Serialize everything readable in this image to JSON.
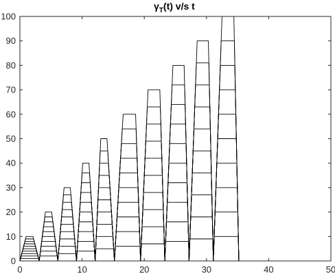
{
  "chart_data": {
    "type": "line",
    "title": {
      "symbol": "γ",
      "subscript": "T",
      "rest": "(t) v/s t"
    },
    "xlabel": "",
    "ylabel": "",
    "xlim": [
      0,
      50
    ],
    "ylim": [
      0,
      100
    ],
    "xticks": [
      0,
      10,
      20,
      30,
      40,
      50
    ],
    "yticks": [
      0,
      10,
      20,
      30,
      40,
      50,
      60,
      70,
      80,
      90,
      100
    ],
    "grid": false,
    "line_color": "#000000",
    "stripes_per_trapezoid": 10,
    "trapezoids": [
      {
        "t_start": 0.0,
        "t_rise_end": 1.0,
        "t_fall_start": 2.1,
        "t_end": 3.1,
        "peak": 10
      },
      {
        "t_start": 3.1,
        "t_rise_end": 4.1,
        "t_fall_start": 5.1,
        "t_end": 6.1,
        "peak": 20
      },
      {
        "t_start": 6.1,
        "t_rise_end": 7.1,
        "t_fall_start": 8.1,
        "t_end": 9.1,
        "peak": 30
      },
      {
        "t_start": 9.1,
        "t_rise_end": 10.1,
        "t_fall_start": 11.1,
        "t_end": 12.1,
        "peak": 40
      },
      {
        "t_start": 12.1,
        "t_rise_end": 13.0,
        "t_fall_start": 14.0,
        "t_end": 15.2,
        "peak": 50
      },
      {
        "t_start": 15.2,
        "t_rise_end": 16.6,
        "t_fall_start": 18.6,
        "t_end": 19.4,
        "peak": 60
      },
      {
        "t_start": 19.4,
        "t_rise_end": 20.6,
        "t_fall_start": 22.5,
        "t_end": 23.3,
        "peak": 70
      },
      {
        "t_start": 23.3,
        "t_rise_end": 24.6,
        "t_fall_start": 26.4,
        "t_end": 27.2,
        "peak": 80
      },
      {
        "t_start": 27.2,
        "t_rise_end": 28.5,
        "t_fall_start": 30.3,
        "t_end": 31.1,
        "peak": 90
      },
      {
        "t_start": 31.1,
        "t_rise_end": 32.5,
        "t_fall_start": 34.4,
        "t_end": 35.2,
        "peak": 100
      }
    ]
  }
}
